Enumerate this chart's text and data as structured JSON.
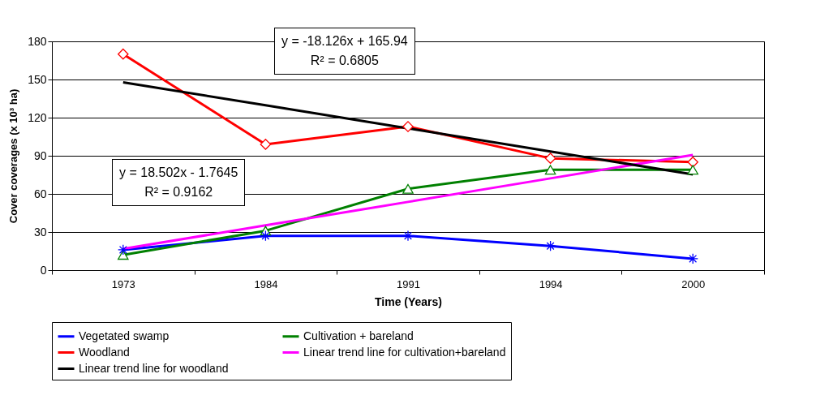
{
  "chart_data": {
    "type": "line",
    "xlabel": "Time (Years)",
    "ylabel": "Cover coverages (x 10³ ha)",
    "categories": [
      "1973",
      "1984",
      "1991",
      "1994",
      "2000"
    ],
    "series": [
      {
        "name": "Vegetated swamp",
        "color": "#0000ff",
        "marker": "cross",
        "values": [
          16,
          27,
          27,
          19,
          9
        ]
      },
      {
        "name": "Cultivation + bareland",
        "color": "#008000",
        "marker": "triangle",
        "values": [
          12,
          31,
          64,
          79,
          79
        ]
      },
      {
        "name": "Woodland",
        "color": "#ff0000",
        "marker": "diamond",
        "values": [
          170,
          99,
          113,
          88,
          85
        ]
      },
      {
        "name": "Linear trend line for cultivation+bareland",
        "color": "#ff00ff",
        "marker": "none",
        "values": [
          16.7,
          35.2,
          53.7,
          72.2,
          90.7
        ]
      },
      {
        "name": "Linear trend line for woodland",
        "color": "#000000",
        "marker": "none",
        "values": [
          147.8,
          129.7,
          111.6,
          93.4,
          75.3
        ]
      }
    ],
    "ylim": [
      0,
      180
    ],
    "yticks": [
      0,
      30,
      60,
      90,
      120,
      150,
      180
    ],
    "grid": "y",
    "legend": "bottom",
    "annotations": [
      "y = -18.126x + 165.94\nR² = 0.6805",
      "y = 18.502x - 1.7645\nR² = 0.9162"
    ]
  }
}
